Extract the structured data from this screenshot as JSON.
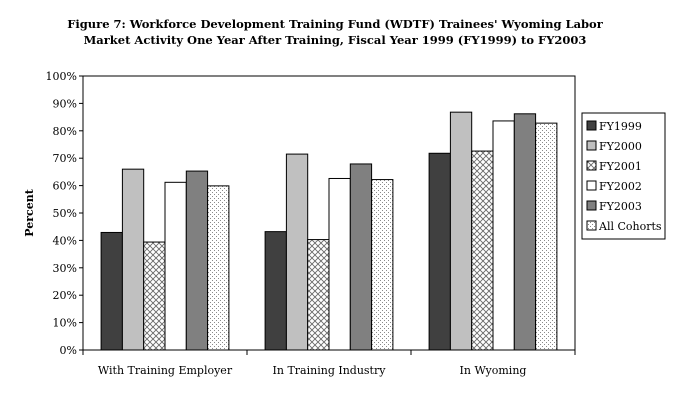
{
  "chart_data": {
    "type": "bar",
    "title_line1": "Figure 7: Workforce Development Training Fund (WDTF) Trainees' Wyoming Labor",
    "title_line2": "Market Activity One Year After Training, Fiscal Year 1999 (FY1999) to FY2003",
    "ylabel": "Percent",
    "xlabel": "",
    "ylim": [
      0,
      100
    ],
    "yticks": [
      "0%",
      "10%",
      "20%",
      "30%",
      "40%",
      "50%",
      "60%",
      "70%",
      "80%",
      "90%",
      "100%"
    ],
    "categories": [
      "With Training Employer",
      "In Training Industry",
      "In Wyoming"
    ],
    "legend_position": "right",
    "grid": false,
    "series": [
      {
        "name": "FY1999",
        "values": [
          42.9,
          43.2,
          71.8
        ],
        "color": "#404040",
        "pattern": "solid"
      },
      {
        "name": "FY2000",
        "values": [
          66.0,
          71.5,
          86.8
        ],
        "color": "#c0c0c0",
        "pattern": "solid"
      },
      {
        "name": "FY2001",
        "values": [
          39.4,
          40.3,
          72.6
        ],
        "color": "#ffffff",
        "pattern": "crosshatch"
      },
      {
        "name": "FY2002",
        "values": [
          61.2,
          62.6,
          83.6
        ],
        "color": "#ffffff",
        "pattern": "solid"
      },
      {
        "name": "FY2003",
        "values": [
          65.3,
          67.9,
          86.2
        ],
        "color": "#808080",
        "pattern": "solid"
      },
      {
        "name": "All Cohorts",
        "values": [
          59.9,
          62.2,
          82.8
        ],
        "color": "#ffffff",
        "pattern": "dots"
      }
    ]
  }
}
